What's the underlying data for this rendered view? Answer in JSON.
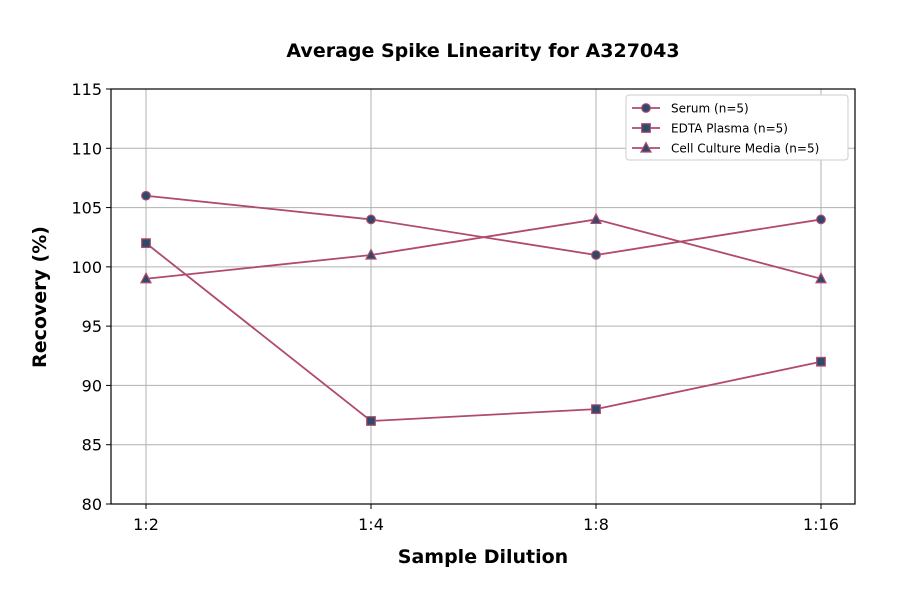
{
  "chart_data": {
    "type": "line",
    "title": "Average Spike Linearity for A327043",
    "xlabel": "Sample Dilution",
    "ylabel": "Recovery (%)",
    "categories": [
      "1:2",
      "1:4",
      "1:8",
      "1:16"
    ],
    "ylim": [
      80,
      115
    ],
    "yticks": [
      80,
      85,
      90,
      95,
      100,
      105,
      110,
      115
    ],
    "grid": true,
    "legend_position": "top-right",
    "line_color": "#b04a6e",
    "marker_color": "#2e4a6b",
    "series": [
      {
        "name": "Serum (n=5)",
        "marker": "circle",
        "values": [
          106,
          104,
          101,
          104
        ]
      },
      {
        "name": "EDTA Plasma (n=5)",
        "marker": "square",
        "values": [
          102,
          87,
          88,
          92
        ]
      },
      {
        "name": "Cell Culture Media (n=5)",
        "marker": "triangle",
        "values": [
          99,
          101,
          104,
          99
        ]
      }
    ]
  }
}
